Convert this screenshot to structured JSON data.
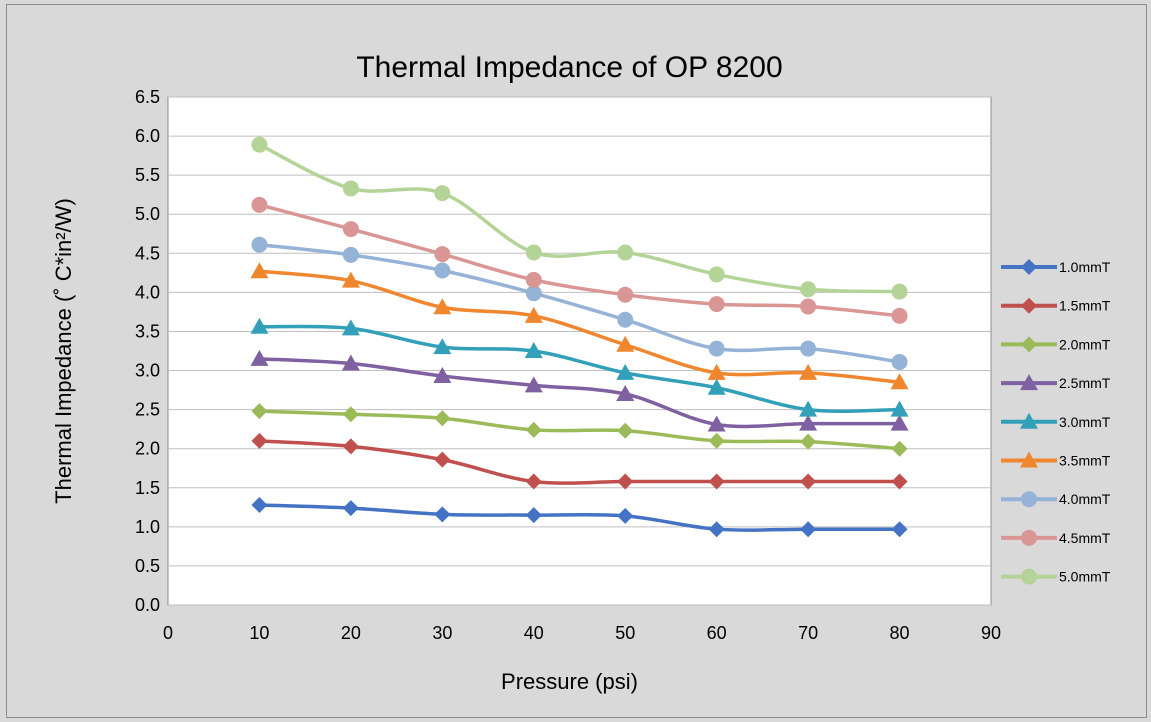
{
  "chart_data": {
    "type": "line",
    "title": "Thermal Impedance of OP 8200",
    "xlabel": "Pressure (psi)",
    "ylabel": "Thermal Impedance (˚ C*in²/W)",
    "xlim": [
      0,
      90
    ],
    "ylim": [
      0,
      6.5
    ],
    "xticks": [
      "0",
      "10",
      "20",
      "30",
      "40",
      "50",
      "60",
      "70",
      "80",
      "90"
    ],
    "yticks": [
      "0.0",
      "0.5",
      "1.0",
      "1.5",
      "2.0",
      "2.5",
      "3.0",
      "3.5",
      "4.0",
      "4.5",
      "5.0",
      "5.5",
      "6.0",
      "6.5"
    ],
    "grid": true,
    "legend": "right",
    "x": [
      10,
      20,
      30,
      40,
      50,
      60,
      70,
      80
    ],
    "series": [
      {
        "name": "1.0mmT",
        "color": "#4472c4",
        "marker": "diamond",
        "values": [
          1.28,
          1.24,
          1.16,
          1.15,
          1.14,
          0.97,
          0.97,
          0.97
        ]
      },
      {
        "name": "1.5mmT",
        "color": "#c0504d",
        "marker": "diamond",
        "values": [
          2.1,
          2.03,
          1.86,
          1.58,
          1.58,
          1.58,
          1.58,
          1.58
        ]
      },
      {
        "name": "2.0mmT",
        "color": "#9bbb59",
        "marker": "diamond",
        "values": [
          2.48,
          2.44,
          2.39,
          2.24,
          2.23,
          2.1,
          2.09,
          2.0
        ]
      },
      {
        "name": "2.5mmT",
        "color": "#7f60a0",
        "marker": "triangle",
        "values": [
          3.15,
          3.09,
          2.93,
          2.81,
          2.7,
          2.31,
          2.32,
          2.32
        ]
      },
      {
        "name": "3.0mmT",
        "color": "#31a0b8",
        "marker": "triangle",
        "values": [
          3.56,
          3.54,
          3.3,
          3.25,
          2.97,
          2.78,
          2.5,
          2.5
        ]
      },
      {
        "name": "3.5mmT",
        "color": "#f0862d",
        "marker": "triangle",
        "values": [
          4.27,
          4.15,
          3.81,
          3.7,
          3.33,
          2.97,
          2.97,
          2.85
        ]
      },
      {
        "name": "4.0mmT",
        "color": "#95b3d7",
        "marker": "circle",
        "values": [
          4.61,
          4.48,
          4.28,
          3.99,
          3.65,
          3.28,
          3.28,
          3.11
        ]
      },
      {
        "name": "4.5mmT",
        "color": "#da9694",
        "marker": "circle",
        "values": [
          5.12,
          4.81,
          4.49,
          4.16,
          3.97,
          3.85,
          3.82,
          3.7
        ]
      },
      {
        "name": "5.0mmT",
        "color": "#b3d496",
        "marker": "circle",
        "values": [
          5.89,
          5.33,
          5.27,
          4.51,
          4.51,
          4.23,
          4.04,
          4.01
        ]
      }
    ]
  }
}
